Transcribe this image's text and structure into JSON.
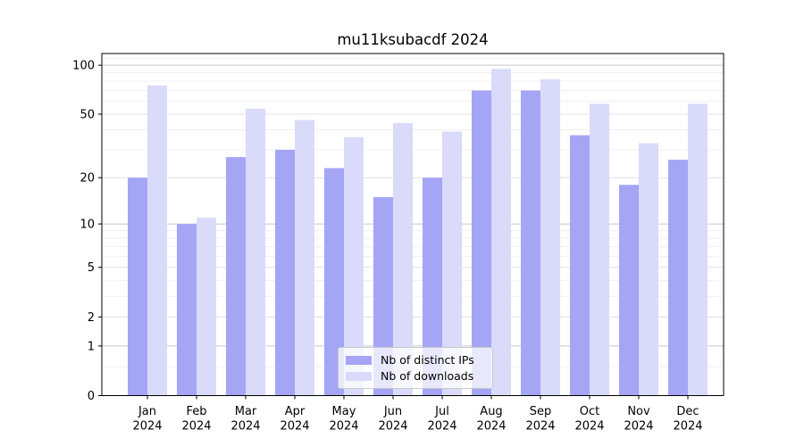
{
  "title": "mu11ksubacdf 2024",
  "chart_data": {
    "type": "bar",
    "title": "mu11ksubacdf 2024",
    "categories": [
      "Jan",
      "Feb",
      "Mar",
      "Apr",
      "May",
      "Jun",
      "Jul",
      "Aug",
      "Sep",
      "Oct",
      "Nov",
      "Dec"
    ],
    "year_label": "2024",
    "series": [
      {
        "name": "Nb of distinct IPs",
        "color": "#a5a5f6",
        "values": [
          20,
          10,
          27,
          30,
          23,
          15,
          20,
          70,
          70,
          37,
          18,
          26
        ]
      },
      {
        "name": "Nb of downloads",
        "color": "#dadafa",
        "values": [
          75,
          11,
          54,
          46,
          36,
          44,
          39,
          95,
          82,
          58,
          33,
          58
        ]
      }
    ],
    "yscale": "log1p",
    "y_ticks": [
      0,
      1,
      2,
      5,
      10,
      20,
      50,
      100
    ],
    "ylim": [
      0,
      118
    ],
    "grid": true,
    "legend_position": "lower center"
  }
}
